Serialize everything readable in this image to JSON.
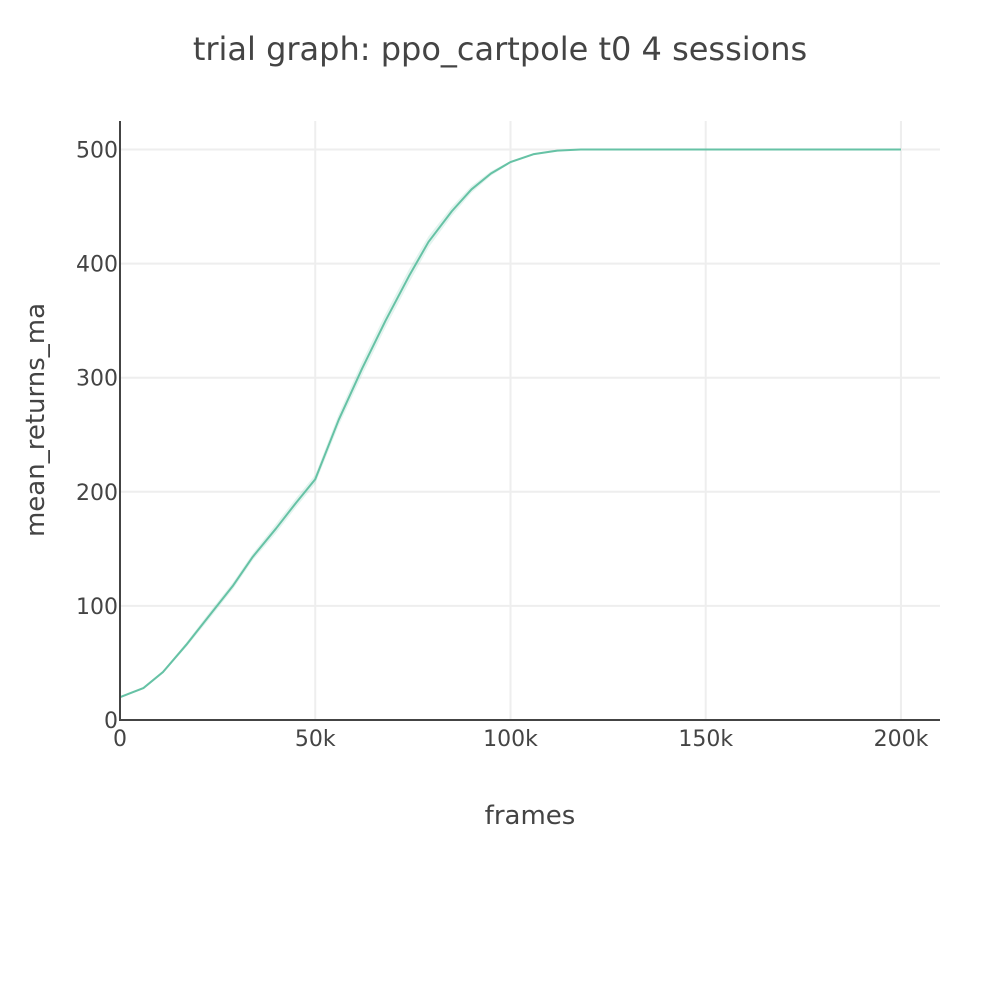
{
  "chart_data": {
    "type": "line",
    "title": "trial graph: ppo_cartpole t0 4 sessions",
    "xlabel": "frames",
    "ylabel": "mean_returns_ma",
    "xlim": [
      0,
      210000
    ],
    "ylim": [
      0,
      525
    ],
    "x_ticks": [
      0,
      50000,
      100000,
      150000,
      200000
    ],
    "x_tick_labels": [
      "0",
      "50k",
      "100k",
      "150k",
      "200k"
    ],
    "y_ticks": [
      0,
      100,
      200,
      300,
      400,
      500
    ],
    "y_tick_labels": [
      "0",
      "100",
      "200",
      "300",
      "400",
      "500"
    ],
    "grid": true,
    "legend": "none",
    "color": "#66c2a5",
    "band_color": "#66c2a5",
    "series": [
      {
        "x": [
          0,
          6000,
          11000,
          17000,
          23000,
          29000,
          34000,
          40000,
          45000,
          50000,
          56000,
          62000,
          68000,
          74000,
          79000,
          85000,
          90000,
          95000,
          100000,
          106000,
          112000,
          118000,
          124000,
          130000,
          140000,
          150000,
          160000,
          170000,
          180000,
          190000,
          200000
        ],
        "y": [
          20,
          28,
          42,
          66,
          92,
          118,
          143,
          168,
          190,
          211,
          263,
          308,
          350,
          389,
          419,
          446,
          465,
          479,
          489,
          496,
          499,
          500,
          500,
          500,
          500,
          500,
          500,
          500,
          500,
          500,
          500
        ],
        "y_lower": [
          19,
          27,
          41,
          64,
          89,
          115,
          140,
          164,
          186,
          207,
          258,
          302,
          344,
          383,
          414,
          442,
          462,
          477,
          488,
          495,
          499,
          500,
          500,
          500,
          500,
          500,
          500,
          500,
          500,
          500,
          500
        ],
        "y_upper": [
          21,
          29,
          43,
          68,
          95,
          121,
          146,
          172,
          194,
          215,
          268,
          314,
          356,
          395,
          424,
          450,
          468,
          481,
          490,
          497,
          500,
          500,
          500,
          500,
          500,
          500,
          500,
          500,
          500,
          500,
          500
        ]
      }
    ]
  }
}
